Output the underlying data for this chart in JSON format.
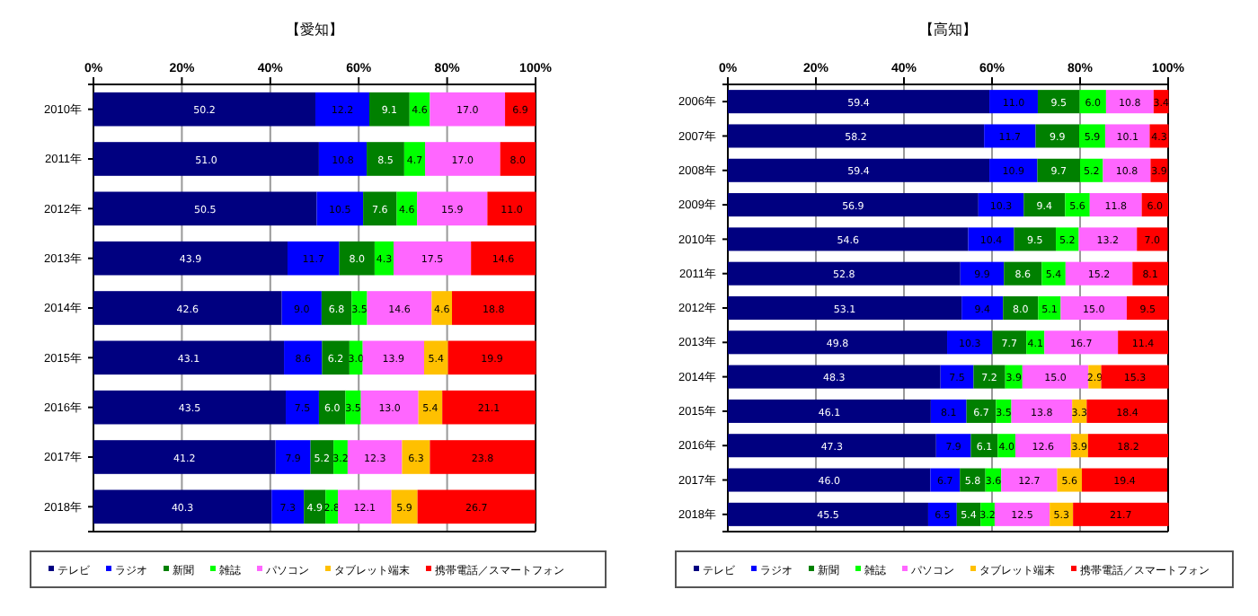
{
  "chart_data": [
    {
      "type": "bar",
      "title": "【愛知】",
      "orientation": "horizontal",
      "stacked": true,
      "grid": "x",
      "legend": "bottom",
      "categories": [
        "2010年",
        "2011年",
        "2012年",
        "2013年",
        "2014年",
        "2015年",
        "2016年",
        "2017年",
        "2018年"
      ],
      "xlim": [
        0,
        100
      ],
      "xticks": [
        {
          "value": 0,
          "label": "0%"
        },
        {
          "value": 20,
          "label": "20%"
        },
        {
          "value": 40,
          "label": "40%"
        },
        {
          "value": 60,
          "label": "60%"
        },
        {
          "value": 80,
          "label": "80%"
        },
        {
          "value": 100,
          "label": "100%"
        }
      ],
      "series": [
        {
          "name": "テレビ",
          "color": "#000080",
          "values": [
            50.2,
            51.0,
            50.5,
            43.9,
            42.6,
            43.1,
            43.5,
            41.2,
            40.3
          ],
          "value_labels": [
            "50.2",
            "51.0",
            "50.5",
            "43.9",
            "42.6",
            "43.1",
            "43.5",
            "41.2",
            "40.3"
          ]
        },
        {
          "name": "ラジオ",
          "color": "#0000ff",
          "values": [
            12.2,
            10.8,
            10.5,
            11.7,
            9.0,
            8.6,
            7.5,
            7.9,
            7.3
          ],
          "value_labels": [
            "12.2",
            "10.8",
            "10.5",
            "11.7",
            "9.0",
            "8.6",
            "7.5",
            "7.9",
            "7.3"
          ]
        },
        {
          "name": "新聞",
          "color": "#008000",
          "values": [
            9.1,
            8.5,
            7.6,
            8.0,
            6.8,
            6.2,
            6.0,
            5.2,
            4.9
          ],
          "value_labels": [
            "9.1",
            "8.5",
            "7.6",
            "8.0",
            "6.8",
            "6.2",
            "6.0",
            "5.2",
            "4.9"
          ]
        },
        {
          "name": "雑誌",
          "color": "#00ff00",
          "values": [
            4.6,
            4.7,
            4.6,
            4.3,
            3.5,
            3.0,
            3.5,
            3.2,
            2.8
          ],
          "value_labels": [
            "4.6",
            "4.7",
            "4.6",
            "4.3",
            "3.5",
            "3.0",
            "3.5",
            "3.2",
            "2.8"
          ]
        },
        {
          "name": "パソコン",
          "color": "#ff66ff",
          "values": [
            17.0,
            17.0,
            15.9,
            17.5,
            14.6,
            13.9,
            13.0,
            12.3,
            12.1
          ],
          "value_labels": [
            "17.0",
            "17.0",
            "15.9",
            "17.5",
            "14.6",
            "13.9",
            "13.0",
            "12.3",
            "12.1"
          ]
        },
        {
          "name": "タブレット端末",
          "color": "#ffc000",
          "values": [
            null,
            null,
            null,
            null,
            4.6,
            5.4,
            5.4,
            6.3,
            5.9
          ],
          "value_labels": [
            null,
            null,
            null,
            null,
            "4.6",
            "5.4",
            "5.4",
            "6.3",
            "5.9"
          ]
        },
        {
          "name": "携帯電話／スマートフォン",
          "color": "#ff0000",
          "values": [
            6.9,
            8.0,
            11.0,
            14.6,
            18.8,
            19.9,
            21.1,
            23.8,
            26.7
          ],
          "value_labels": [
            "6.9",
            "8.0",
            "11.0",
            "14.6",
            "18.8",
            "19.9",
            "21.1",
            "23.8",
            "26.7"
          ]
        }
      ]
    },
    {
      "type": "bar",
      "title": "【高知】",
      "orientation": "horizontal",
      "stacked": true,
      "grid": "x",
      "legend": "bottom",
      "categories": [
        "2006年",
        "2007年",
        "2008年",
        "2009年",
        "2010年",
        "2011年",
        "2012年",
        "2013年",
        "2014年",
        "2015年",
        "2016年",
        "2017年",
        "2018年"
      ],
      "xlim": [
        0,
        100
      ],
      "xticks": [
        {
          "value": 0,
          "label": "0%"
        },
        {
          "value": 20,
          "label": "20%"
        },
        {
          "value": 40,
          "label": "40%"
        },
        {
          "value": 60,
          "label": "60%"
        },
        {
          "value": 80,
          "label": "80%"
        },
        {
          "value": 100,
          "label": "100%"
        }
      ],
      "series": [
        {
          "name": "テレビ",
          "color": "#000080",
          "values": [
            59.4,
            58.2,
            59.4,
            56.9,
            54.6,
            52.8,
            53.1,
            49.8,
            48.3,
            46.1,
            47.3,
            46.0,
            45.5
          ],
          "value_labels": [
            "59.4",
            "58.2",
            "59.4",
            "56.9",
            "54.6",
            "52.8",
            "53.1",
            "49.8",
            "48.3",
            "46.1",
            "47.3",
            "46.0",
            "45.5"
          ]
        },
        {
          "name": "ラジオ",
          "color": "#0000ff",
          "values": [
            11.0,
            11.7,
            10.9,
            10.3,
            10.4,
            9.9,
            9.4,
            10.3,
            7.5,
            8.1,
            7.9,
            6.7,
            6.5
          ],
          "value_labels": [
            "11.0",
            "11.7",
            "10.9",
            "10.3",
            "10.4",
            "9.9",
            "9.4",
            "10.3",
            "7.5",
            "8.1",
            "7.9",
            "6.7",
            "6.5"
          ]
        },
        {
          "name": "新聞",
          "color": "#008000",
          "values": [
            9.5,
            9.9,
            9.7,
            9.4,
            9.5,
            8.6,
            8.0,
            7.7,
            7.2,
            6.7,
            6.1,
            5.8,
            5.4
          ],
          "value_labels": [
            "9.5",
            "9.9",
            "9.7",
            "9.4",
            "9.5",
            "8.6",
            "8.0",
            "7.7",
            "7.2",
            "6.7",
            "6.1",
            "5.8",
            "5.4"
          ]
        },
        {
          "name": "雑誌",
          "color": "#00ff00",
          "values": [
            6.0,
            5.9,
            5.2,
            5.6,
            5.2,
            5.4,
            5.1,
            4.1,
            3.9,
            3.5,
            4.0,
            3.6,
            3.2
          ],
          "value_labels": [
            "6.0",
            "5.9",
            "5.2",
            "5.6",
            "5.2",
            "5.4",
            "5.1",
            "4.1",
            "3.9",
            "3.5",
            "4.0",
            "3.6",
            "3.2"
          ]
        },
        {
          "name": "パソコン",
          "color": "#ff66ff",
          "values": [
            10.8,
            10.1,
            10.8,
            11.8,
            13.2,
            15.2,
            15.0,
            16.7,
            15.0,
            13.8,
            12.6,
            12.7,
            12.5
          ],
          "value_labels": [
            "10.8",
            "10.1",
            "10.8",
            "11.8",
            "13.2",
            "15.2",
            "15.0",
            "16.7",
            "15.0",
            "13.8",
            "12.6",
            "12.7",
            "12.5"
          ]
        },
        {
          "name": "タブレット端末",
          "color": "#ffc000",
          "values": [
            null,
            null,
            null,
            null,
            null,
            null,
            null,
            null,
            2.9,
            3.3,
            3.9,
            5.6,
            5.3
          ],
          "value_labels": [
            null,
            null,
            null,
            null,
            null,
            null,
            null,
            null,
            "2.9",
            "3.3",
            "3.9",
            "5.6",
            "5.3"
          ]
        },
        {
          "name": "携帯電話／スマートフォン",
          "color": "#ff0000",
          "values": [
            3.4,
            4.3,
            3.9,
            6.0,
            7.0,
            8.1,
            9.5,
            11.4,
            15.3,
            18.4,
            18.2,
            19.4,
            21.7
          ],
          "value_labels": [
            "3.4",
            "4.3",
            "3.9",
            "6.0",
            "7.0",
            "8.1",
            "9.5",
            "11.4",
            "15.3",
            "18.4",
            "18.2",
            "19.4",
            "21.7"
          ]
        }
      ]
    }
  ]
}
